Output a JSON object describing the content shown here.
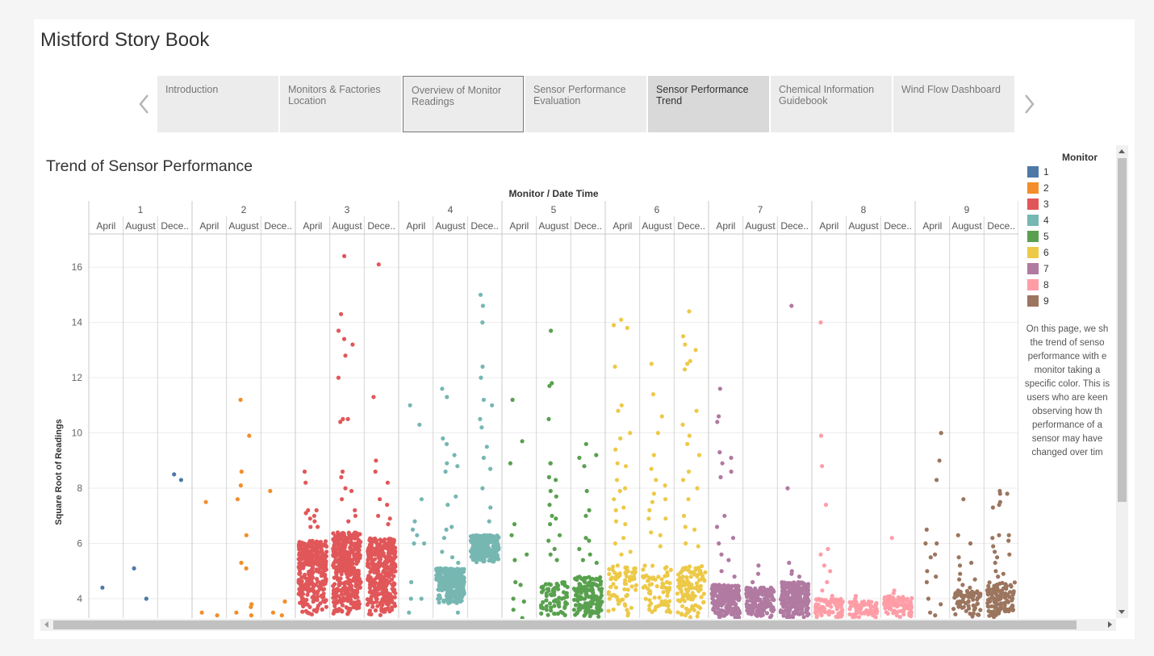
{
  "story": {
    "title": "Mistford Story Book"
  },
  "tabs": [
    {
      "label": "Introduction",
      "state": "normal"
    },
    {
      "label": "Monitors & Factories Location",
      "state": "normal"
    },
    {
      "label": "Overview of Monitor Readings",
      "state": "outlined"
    },
    {
      "label": "Sensor Performance Evaluation",
      "state": "normal"
    },
    {
      "label": "Sensor Performance Trend",
      "state": "active"
    },
    {
      "label": "Chemical Information Guidebook",
      "state": "normal"
    },
    {
      "label": "Wind Flow Dashboard",
      "state": "normal"
    }
  ],
  "nav": {
    "prev_icon": "chevron-left-icon",
    "next_icon": "chevron-right-icon"
  },
  "viz": {
    "title": "Trend of Sensor Performance",
    "legend_title": "Monitor",
    "description": [
      "On this page, we sh",
      "the trend of senso",
      "performance with e",
      "monitor taking a",
      "specific color. This is",
      "users who are keen",
      "observing how th",
      "performance of a",
      "sensor may have",
      "changed over tim"
    ]
  },
  "chart_data": {
    "type": "scatter",
    "title": "Trend of Sensor Performance",
    "header_label": "Monitor  /  Date Time",
    "ylabel": "Square Root of Readings",
    "y_ticks": [
      4,
      6,
      8,
      10,
      12,
      14,
      16
    ],
    "ylim": [
      3.3,
      17.2
    ],
    "grid": true,
    "legend_placement": "right",
    "sub_columns": [
      "April",
      "August",
      "Dece.."
    ],
    "monitors": [
      {
        "name": "1",
        "color": "#4e79a7",
        "outliers": [
          [
            [
              4.4
            ],
            []
          ],
          [
            [
              5.1
            ],
            [
              4.0
            ]
          ],
          [
            [
              8.5
            ],
            [
              8.3
            ]
          ]
        ],
        "clusters": [
          [
            0,
            0,
            0
          ],
          [
            0,
            0,
            0
          ],
          [
            0,
            0,
            0
          ]
        ]
      },
      {
        "name": "2",
        "color": "#f28e2b",
        "outliers": [
          [
            [
              7.5,
              3.5
            ],
            [
              3.4
            ]
          ],
          [
            [
              11.2,
              8.6,
              8.1,
              7.6,
              5.3,
              3.5
            ],
            [
              9.9,
              6.3,
              5.1,
              3.7,
              3.8,
              3.4
            ]
          ],
          [
            [
              7.9,
              3.5
            ],
            [
              3.9,
              3.4
            ]
          ]
        ],
        "clusters": [
          [
            0,
            0,
            0
          ],
          [
            0,
            0,
            0
          ],
          [
            0,
            0,
            0
          ]
        ]
      },
      {
        "name": "3",
        "color": "#e15759",
        "outliers": [
          [
            [
              7.2,
              8.2,
              8.6,
              6.9,
              7.1,
              6.6
            ],
            [
              7.0,
              6.6,
              7.2,
              6.8
            ]
          ],
          [
            [
              16.4,
              14.3,
              13.7,
              13.4,
              12.8,
              12.0,
              10.5,
              10.4,
              8.6,
              8.4,
              8.0,
              7.6
            ],
            [
              13.2,
              10.5,
              7.9,
              7.2,
              7.0,
              6.8
            ]
          ],
          [
            [
              16.1,
              11.3,
              9.0,
              8.6,
              7.6,
              7.0
            ],
            [
              8.2,
              7.4,
              6.9,
              6.7
            ]
          ]
        ],
        "clusters": [
          [
            3.4,
            6.1,
            340
          ],
          [
            3.4,
            6.4,
            420
          ],
          [
            3.4,
            6.2,
            360
          ]
        ]
      },
      {
        "name": "4",
        "color": "#76b7b2",
        "outliers": [
          [
            [
              11.0,
              6.8,
              6.5,
              6.0,
              4.6,
              4.0,
              3.5
            ],
            [
              10.3,
              7.6,
              6.3,
              6.0,
              4.0
            ]
          ],
          [
            [
              11.6,
              11.3,
              9.8,
              9.6,
              8.9,
              8.6,
              7.4,
              6.5,
              6.2,
              5.7
            ],
            [
              9.2,
              8.8,
              7.7,
              6.6,
              5.5,
              5.3,
              3.5
            ]
          ],
          [
            [
              15.0,
              14.6,
              14.0,
              12.4,
              12.0,
              11.2,
              10.5,
              10.2,
              9.1,
              8.0
            ],
            [
              11.0,
              9.5,
              8.7,
              7.3,
              6.8
            ]
          ]
        ],
        "clusters": [
          [
            0,
            0,
            0
          ],
          [
            3.8,
            5.1,
            300
          ],
          [
            5.3,
            6.3,
            260
          ]
        ]
      },
      {
        "name": "5",
        "color": "#59a14f",
        "outliers": [
          [
            [
              11.2,
              8.9,
              6.7,
              6.3,
              5.4,
              4.6,
              4.0,
              3.6
            ],
            [
              9.7,
              5.6,
              4.5,
              3.9,
              3.3
            ]
          ],
          [
            [
              13.7,
              11.8,
              11.7,
              10.5,
              8.9,
              8.9,
              8.4,
              7.9,
              7.4,
              7.0,
              6.7,
              6.1,
              5.6
            ],
            [
              8.3,
              7.7,
              6.9,
              6.3,
              5.8,
              5.4
            ]
          ],
          [
            [
              9.6,
              9.1,
              8.8,
              7.9,
              7.0,
              6.2,
              5.8,
              5.4
            ],
            [
              9.2,
              7.2,
              6.1,
              5.6,
              5.3
            ]
          ]
        ],
        "clusters": [
          [
            0,
            0,
            0
          ],
          [
            3.3,
            4.6,
            70
          ],
          [
            3.3,
            4.8,
            140
          ]
        ]
      },
      {
        "name": "6",
        "color": "#edc948",
        "outliers": [
          [
            [
              14.1,
              13.9,
              12.4,
              11.0,
              10.8,
              9.8,
              9.4,
              8.9,
              8.3,
              7.9,
              7.6,
              7.2,
              6.8,
              6.0,
              5.6,
              5.2
            ],
            [
              13.8,
              10.0,
              8.8,
              8.0,
              7.3,
              6.7,
              6.2,
              5.7
            ]
          ],
          [
            [
              12.5,
              11.4,
              9.2,
              8.7,
              8.3,
              7.8,
              7.5,
              7.2,
              6.9,
              6.4
            ],
            [
              10.6,
              10.0,
              8.1,
              7.6,
              6.9,
              6.3,
              5.9,
              5.1
            ]
          ],
          [
            [
              14.4,
              13.5,
              13.2,
              12.6,
              12.5,
              12.3,
              10.3,
              9.9,
              9.6,
              8.6,
              8.3,
              7.6,
              7.0,
              6.6,
              6.0
            ],
            [
              13.0,
              10.8,
              9.2,
              8.0,
              6.5,
              5.9,
              5.1
            ]
          ]
        ],
        "clusters": [
          [
            3.3,
            5.2,
            70
          ],
          [
            3.3,
            5.2,
            70
          ],
          [
            3.3,
            5.2,
            110
          ]
        ]
      },
      {
        "name": "7",
        "color": "#b07aa1",
        "outliers": [
          [
            [
              11.6,
              10.6,
              10.4,
              9.3,
              8.9,
              8.4,
              7.0,
              6.6,
              6.0,
              5.6,
              5.0
            ],
            [
              9.1,
              8.6,
              6.2,
              5.4,
              4.8
            ]
          ],
          [
            [
              5.2,
              4.9,
              4.6
            ],
            [
              4.4,
              4.2
            ]
          ],
          [
            [
              14.6,
              8.0,
              5.3,
              5.0,
              4.9
            ],
            [
              4.8,
              4.6
            ]
          ]
        ],
        "clusters": [
          [
            3.3,
            4.5,
            230
          ],
          [
            3.3,
            4.4,
            180
          ],
          [
            3.3,
            4.6,
            240
          ]
        ]
      },
      {
        "name": "8",
        "color": "#ff9da7",
        "outliers": [
          [
            [
              14.0,
              9.9,
              8.8,
              7.4,
              5.8,
              5.6,
              5.2,
              4.6,
              4.3
            ],
            [
              5.0,
              4.1
            ]
          ],
          [
            [
              4.1,
              4.0
            ],
            [
              3.9,
              3.8
            ]
          ],
          [
            [
              6.2,
              4.3,
              4.2
            ],
            [
              3.9
            ]
          ]
        ],
        "clusters": [
          [
            3.3,
            4.0,
            80
          ],
          [
            3.3,
            3.9,
            70
          ],
          [
            3.3,
            4.1,
            90
          ]
        ]
      },
      {
        "name": "9",
        "color": "#9c755f",
        "outliers": [
          [
            [
              6.5,
              6.0,
              5.5,
              5.0,
              4.6,
              4.0,
              3.5
            ],
            [
              10.0,
              9.0,
              8.3,
              6.0,
              5.6,
              4.8,
              3.8,
              3.4
            ]
          ],
          [
            [
              7.6,
              6.3,
              5.5,
              5.2,
              4.9,
              4.7,
              4.5,
              4.3,
              4.1,
              3.9,
              3.7
            ],
            [
              6.0,
              5.3,
              4.7,
              4.4,
              4.1,
              3.9,
              3.6
            ]
          ],
          [
            [
              7.9,
              7.8,
              7.5,
              7.4,
              7.3,
              6.3,
              6.2,
              5.9,
              5.7,
              5.5,
              5.3,
              5.0,
              4.8
            ],
            [
              7.8,
              6.3,
              6.1,
              5.6,
              4.9
            ]
          ]
        ],
        "clusters": [
          [
            0,
            0,
            0
          ],
          [
            3.3,
            4.3,
            60
          ],
          [
            3.3,
            4.6,
            110
          ]
        ]
      }
    ]
  }
}
